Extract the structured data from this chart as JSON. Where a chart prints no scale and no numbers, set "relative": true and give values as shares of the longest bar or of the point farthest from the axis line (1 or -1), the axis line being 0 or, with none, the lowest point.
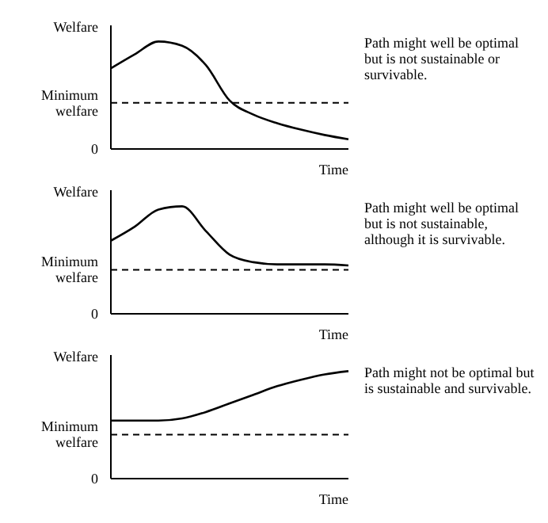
{
  "chart_data": [
    {
      "type": "line",
      "relative": true,
      "ylabel": "Welfare",
      "xlabel": "Time",
      "categories": [
        null,
        null,
        null,
        null,
        null,
        null,
        null,
        null,
        null,
        null,
        null
      ],
      "series": [
        {
          "color": "#000000",
          "values": [
            0.75,
            0.88,
            1.0,
            0.96,
            0.78,
            0.45,
            0.32,
            0.24,
            0.18,
            0.13,
            0.09
          ]
        }
      ],
      "ref_lines": [
        {
          "axis": "y",
          "value": 0.43,
          "label": "Minimum welfare",
          "color": "#000000",
          "line_style": "dashed"
        }
      ],
      "annotations": [
        "0",
        "Path might well be optimal but is not sustainable or survivable."
      ],
      "marker": "none",
      "legend": false,
      "grid": false
    },
    {
      "type": "line",
      "relative": true,
      "ylabel": "Welfare",
      "xlabel": "Time",
      "categories": [
        null,
        null,
        null,
        null,
        null,
        null,
        null,
        null,
        null,
        null,
        null
      ],
      "series": [
        {
          "color": "#000000",
          "values": [
            0.68,
            0.81,
            0.97,
            1.0,
            0.77,
            0.55,
            0.48,
            0.46,
            0.46,
            0.46,
            0.45
          ]
        }
      ],
      "ref_lines": [
        {
          "axis": "y",
          "value": 0.41,
          "label": "Minimum welfare",
          "color": "#000000",
          "line_style": "dashed"
        }
      ],
      "annotations": [
        "0",
        "Path might well be optimal but is not sustainable, although it is survivable."
      ],
      "marker": "none",
      "legend": false,
      "grid": false
    },
    {
      "type": "line",
      "relative": true,
      "ylabel": "Welfare",
      "xlabel": "Time",
      "categories": [
        null,
        null,
        null,
        null,
        null,
        null,
        null,
        null,
        null,
        null,
        null
      ],
      "series": [
        {
          "color": "#000000",
          "values": [
            0.54,
            0.54,
            0.54,
            0.56,
            0.62,
            0.7,
            0.78,
            0.86,
            0.92,
            0.97,
            1.0
          ]
        }
      ],
      "ref_lines": [
        {
          "axis": "y",
          "value": 0.41,
          "label": "Minimum welfare",
          "color": "#000000",
          "line_style": "dashed"
        }
      ],
      "annotations": [
        "0",
        "Path might not be optimal but is sustainable and survivable."
      ],
      "marker": "none",
      "legend": false,
      "grid": false
    }
  ]
}
